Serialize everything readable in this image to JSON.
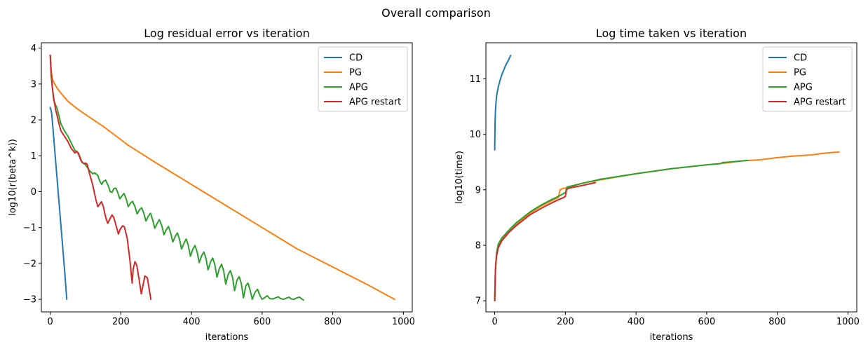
{
  "figure_title": "Overall comparison",
  "colors": {
    "CD": "#1f77b4",
    "PG": "#ff7f0e",
    "APG": "#2ca02c",
    "APG restart": "#d62728"
  },
  "chart_data": [
    {
      "type": "line",
      "title": "Log residual error vs iteration",
      "xlabel": "iterations",
      "ylabel": "log10(r(beta^k))",
      "xlim": [
        -25,
        1025
      ],
      "ylim": [
        -3.35,
        4.15
      ],
      "xticks": [
        0,
        200,
        400,
        600,
        800,
        1000
      ],
      "yticks": [
        -3,
        -2,
        -1,
        0,
        1,
        2,
        3,
        4
      ],
      "grid": false,
      "legend": "top-right",
      "series": [
        {
          "name": "CD",
          "color": "#1f77b4",
          "points": [
            [
              0,
              2.35
            ],
            [
              3,
              2.25
            ],
            [
              5,
              2.1
            ],
            [
              10,
              1.5
            ],
            [
              20,
              0.3
            ],
            [
              30,
              -0.9
            ],
            [
              40,
              -2.1
            ],
            [
              47,
              -3.0
            ]
          ]
        },
        {
          "name": "PG",
          "color": "#ff7f0e",
          "points": [
            [
              0,
              3.8
            ],
            [
              3,
              3.35
            ],
            [
              6,
              3.15
            ],
            [
              10,
              3.05
            ],
            [
              20,
              2.88
            ],
            [
              30,
              2.75
            ],
            [
              50,
              2.52
            ],
            [
              75,
              2.32
            ],
            [
              100,
              2.15
            ],
            [
              150,
              1.82
            ],
            [
              200,
              1.45
            ],
            [
              220,
              1.3
            ],
            [
              300,
              0.8
            ],
            [
              400,
              0.2
            ],
            [
              500,
              -0.4
            ],
            [
              600,
              -1.0
            ],
            [
              700,
              -1.6
            ],
            [
              800,
              -2.1
            ],
            [
              900,
              -2.6
            ],
            [
              975,
              -3.0
            ]
          ]
        },
        {
          "name": "APG",
          "color": "#2ca02c",
          "points": [
            [
              0,
              3.8
            ],
            [
              3,
              3.2
            ],
            [
              5,
              3.0
            ],
            [
              10,
              2.55
            ],
            [
              20,
              2.3
            ],
            [
              30,
              1.9
            ],
            [
              40,
              1.7
            ],
            [
              50,
              1.55
            ],
            [
              60,
              1.35
            ],
            [
              70,
              1.15
            ],
            [
              80,
              1.08
            ],
            [
              90,
              0.82
            ],
            [
              100,
              0.75
            ],
            [
              110,
              0.6
            ],
            [
              120,
              0.5
            ],
            [
              127,
              0.52
            ],
            [
              135,
              0.45
            ],
            [
              140,
              0.3
            ],
            [
              146,
              0.2
            ],
            [
              150,
              0.28
            ],
            [
              157,
              0.32
            ],
            [
              165,
              0.15
            ],
            [
              170,
              0.0
            ],
            [
              175,
              -0.02
            ],
            [
              180,
              0.08
            ],
            [
              186,
              0.1
            ],
            [
              192,
              -0.05
            ],
            [
              197,
              -0.2
            ],
            [
              203,
              -0.12
            ],
            [
              209,
              -0.05
            ],
            [
              215,
              -0.2
            ],
            [
              221,
              -0.42
            ],
            [
              227,
              -0.32
            ],
            [
              233,
              -0.27
            ],
            [
              240,
              -0.42
            ],
            [
              246,
              -0.62
            ],
            [
              253,
              -0.5
            ],
            [
              259,
              -0.45
            ],
            [
              265,
              -0.6
            ],
            [
              271,
              -0.82
            ],
            [
              278,
              -0.68
            ],
            [
              284,
              -0.6
            ],
            [
              290,
              -0.78
            ],
            [
              296,
              -1.02
            ],
            [
              303,
              -0.88
            ],
            [
              309,
              -0.78
            ],
            [
              316,
              -0.95
            ],
            [
              322,
              -1.2
            ],
            [
              329,
              -1.05
            ],
            [
              335,
              -0.97
            ],
            [
              341,
              -1.15
            ],
            [
              347,
              -1.4
            ],
            [
              354,
              -1.25
            ],
            [
              360,
              -1.15
            ],
            [
              366,
              -1.33
            ],
            [
              372,
              -1.6
            ],
            [
              379,
              -1.43
            ],
            [
              385,
              -1.32
            ],
            [
              391,
              -1.5
            ],
            [
              397,
              -1.8
            ],
            [
              404,
              -1.6
            ],
            [
              410,
              -1.5
            ],
            [
              416,
              -1.68
            ],
            [
              422,
              -1.98
            ],
            [
              429,
              -1.78
            ],
            [
              435,
              -1.68
            ],
            [
              441,
              -1.86
            ],
            [
              447,
              -2.18
            ],
            [
              454,
              -1.96
            ],
            [
              460,
              -1.85
            ],
            [
              466,
              -2.03
            ],
            [
              472,
              -2.38
            ],
            [
              479,
              -2.14
            ],
            [
              485,
              -2.02
            ],
            [
              491,
              -2.2
            ],
            [
              497,
              -2.58
            ],
            [
              504,
              -2.3
            ],
            [
              510,
              -2.2
            ],
            [
              516,
              -2.38
            ],
            [
              522,
              -2.76
            ],
            [
              529,
              -2.46
            ],
            [
              535,
              -2.37
            ],
            [
              541,
              -2.56
            ],
            [
              547,
              -2.96
            ],
            [
              554,
              -2.62
            ],
            [
              560,
              -2.55
            ],
            [
              566,
              -2.74
            ],
            [
              572,
              -3.0
            ],
            [
              580,
              -2.8
            ],
            [
              587,
              -2.72
            ],
            [
              594,
              -2.9
            ],
            [
              600,
              -3.0
            ],
            [
              608,
              -2.95
            ],
            [
              614,
              -2.9
            ],
            [
              622,
              -2.98
            ],
            [
              630,
              -2.99
            ],
            [
              638,
              -2.96
            ],
            [
              646,
              -2.93
            ],
            [
              652,
              -2.98
            ],
            [
              660,
              -3.0
            ],
            [
              668,
              -2.97
            ],
            [
              676,
              -2.94
            ],
            [
              682,
              -2.99
            ],
            [
              690,
              -3.0
            ],
            [
              698,
              -2.96
            ],
            [
              706,
              -2.94
            ],
            [
              712,
              -2.99
            ],
            [
              717,
              -3.02
            ]
          ]
        },
        {
          "name": "APG restart",
          "color": "#d62728",
          "points": [
            [
              0,
              3.8
            ],
            [
              3,
              3.3
            ],
            [
              6,
              2.9
            ],
            [
              10,
              2.6
            ],
            [
              15,
              2.3
            ],
            [
              20,
              2.1
            ],
            [
              25,
              1.9
            ],
            [
              30,
              1.7
            ],
            [
              40,
              1.55
            ],
            [
              50,
              1.4
            ],
            [
              60,
              1.2
            ],
            [
              70,
              1.08
            ],
            [
              75,
              1.12
            ],
            [
              80,
              1.05
            ],
            [
              88,
              0.85
            ],
            [
              95,
              0.78
            ],
            [
              100,
              0.8
            ],
            [
              105,
              0.76
            ],
            [
              110,
              0.55
            ],
            [
              120,
              0.2
            ],
            [
              130,
              -0.25
            ],
            [
              135,
              -0.42
            ],
            [
              140,
              -0.35
            ],
            [
              145,
              -0.28
            ],
            [
              150,
              -0.4
            ],
            [
              158,
              -0.75
            ],
            [
              163,
              -0.88
            ],
            [
              168,
              -0.78
            ],
            [
              175,
              -0.65
            ],
            [
              180,
              -0.72
            ],
            [
              188,
              -1.0
            ],
            [
              193,
              -1.18
            ],
            [
              198,
              -1.05
            ],
            [
              205,
              -0.95
            ],
            [
              210,
              -0.98
            ],
            [
              218,
              -1.3
            ],
            [
              225,
              -1.85
            ],
            [
              232,
              -2.55
            ],
            [
              235,
              -2.15
            ],
            [
              240,
              -1.95
            ],
            [
              245,
              -2.05
            ],
            [
              250,
              -2.35
            ],
            [
              258,
              -2.85
            ],
            [
              263,
              -2.6
            ],
            [
              268,
              -2.35
            ],
            [
              275,
              -2.4
            ],
            [
              280,
              -2.7
            ],
            [
              285,
              -3.0
            ]
          ]
        }
      ]
    },
    {
      "type": "line",
      "title": "Log time taken vs iteration",
      "xlabel": "iterations",
      "ylabel": "log10(time)",
      "xlim": [
        -25,
        1025
      ],
      "ylim": [
        6.8,
        11.65
      ],
      "xticks": [
        0,
        200,
        400,
        600,
        800,
        1000
      ],
      "yticks": [
        7,
        8,
        9,
        10,
        11
      ],
      "grid": false,
      "legend": "top-right",
      "series": [
        {
          "name": "CD",
          "color": "#1f77b4",
          "points": [
            [
              0,
              9.72
            ],
            [
              1,
              10.2
            ],
            [
              2,
              10.42
            ],
            [
              4,
              10.6
            ],
            [
              6,
              10.72
            ],
            [
              10,
              10.85
            ],
            [
              15,
              10.97
            ],
            [
              20,
              11.07
            ],
            [
              25,
              11.15
            ],
            [
              30,
              11.23
            ],
            [
              35,
              11.29
            ],
            [
              40,
              11.35
            ],
            [
              45,
              11.42
            ]
          ]
        },
        {
          "name": "PG",
          "color": "#ff7f0e",
          "points": [
            [
              0,
              7.0
            ],
            [
              2,
              7.55
            ],
            [
              5,
              7.85
            ],
            [
              10,
              8.0
            ],
            [
              20,
              8.1
            ],
            [
              40,
              8.25
            ],
            [
              60,
              8.38
            ],
            [
              80,
              8.48
            ],
            [
              100,
              8.58
            ],
            [
              130,
              8.7
            ],
            [
              160,
              8.8
            ],
            [
              180,
              8.86
            ],
            [
              185,
              9.0
            ],
            [
              195,
              9.03
            ],
            [
              200,
              9.03
            ],
            [
              250,
              9.12
            ],
            [
              300,
              9.18
            ],
            [
              400,
              9.29
            ],
            [
              500,
              9.38
            ],
            [
              600,
              9.45
            ],
            [
              650,
              9.48
            ],
            [
              700,
              9.52
            ],
            [
              750,
              9.54
            ],
            [
              800,
              9.58
            ],
            [
              850,
              9.61
            ],
            [
              900,
              9.63
            ],
            [
              920,
              9.65
            ],
            [
              950,
              9.67
            ],
            [
              975,
              9.68
            ]
          ]
        },
        {
          "name": "APG",
          "color": "#2ca02c",
          "points": [
            [
              0,
              7.0
            ],
            [
              2,
              7.55
            ],
            [
              5,
              7.85
            ],
            [
              10,
              8.02
            ],
            [
              20,
              8.13
            ],
            [
              40,
              8.27
            ],
            [
              60,
              8.4
            ],
            [
              80,
              8.5
            ],
            [
              100,
              8.6
            ],
            [
              130,
              8.72
            ],
            [
              160,
              8.82
            ],
            [
              180,
              8.88
            ],
            [
              200,
              8.95
            ],
            [
              205,
              9.05
            ],
            [
              250,
              9.12
            ],
            [
              300,
              9.19
            ],
            [
              400,
              9.29
            ],
            [
              500,
              9.38
            ],
            [
              600,
              9.45
            ],
            [
              638,
              9.47
            ],
            [
              645,
              9.49
            ],
            [
              700,
              9.52
            ],
            [
              717,
              9.53
            ]
          ]
        },
        {
          "name": "APG restart",
          "color": "#d62728",
          "points": [
            [
              0,
              7.0
            ],
            [
              2,
              7.55
            ],
            [
              5,
              7.8
            ],
            [
              10,
              7.95
            ],
            [
              20,
              8.08
            ],
            [
              40,
              8.23
            ],
            [
              60,
              8.35
            ],
            [
              80,
              8.45
            ],
            [
              100,
              8.55
            ],
            [
              130,
              8.66
            ],
            [
              160,
              8.76
            ],
            [
              180,
              8.82
            ],
            [
              195,
              8.86
            ],
            [
              200,
              8.88
            ],
            [
              203,
              9.0
            ],
            [
              210,
              9.03
            ],
            [
              250,
              9.08
            ],
            [
              285,
              9.13
            ]
          ]
        }
      ]
    }
  ]
}
